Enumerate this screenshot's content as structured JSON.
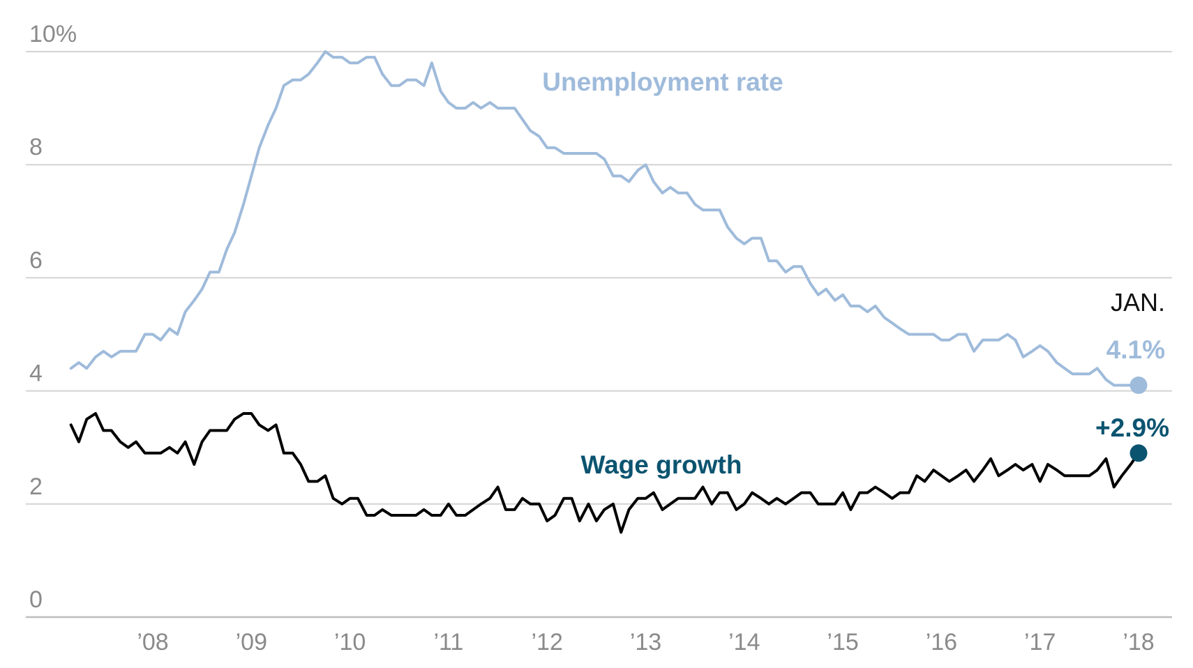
{
  "chart_data": {
    "type": "line",
    "ylim": [
      0,
      10
    ],
    "y_ticks": [
      {
        "value": 10,
        "label": "10%"
      },
      {
        "value": 8,
        "label": "8"
      },
      {
        "value": 6,
        "label": "6"
      },
      {
        "value": 4,
        "label": "4"
      },
      {
        "value": 2,
        "label": "2"
      },
      {
        "value": 0,
        "label": "0"
      }
    ],
    "x_range": [
      2007.17,
      2018.33
    ],
    "x_ticks": [
      {
        "value": 2008,
        "label": "’08"
      },
      {
        "value": 2009,
        "label": "’09"
      },
      {
        "value": 2010,
        "label": "’10"
      },
      {
        "value": 2011,
        "label": "’11"
      },
      {
        "value": 2012,
        "label": "’12"
      },
      {
        "value": 2013,
        "label": "’13"
      },
      {
        "value": 2014,
        "label": "’14"
      },
      {
        "value": 2015,
        "label": "’15"
      },
      {
        "value": 2016,
        "label": "’16"
      },
      {
        "value": 2017,
        "label": "’17"
      },
      {
        "value": 2018,
        "label": "’18"
      }
    ],
    "grid": true,
    "colors": {
      "unemployment": "#9fbbdb",
      "wage": "#000000",
      "wage_end": "#0b5470",
      "grid": "#d4d4d4",
      "tick": "#8a8a8a"
    },
    "endpoint_label": "JAN.",
    "series": [
      {
        "name": "Unemployment rate",
        "key": "unemployment",
        "end_label": "4.1%",
        "x": [
          2007.17,
          2007.25,
          2007.33,
          2007.42,
          2007.5,
          2007.58,
          2007.67,
          2007.75,
          2007.83,
          2007.92,
          2008.0,
          2008.08,
          2008.17,
          2008.25,
          2008.33,
          2008.42,
          2008.5,
          2008.58,
          2008.67,
          2008.75,
          2008.83,
          2008.92,
          2009.0,
          2009.08,
          2009.17,
          2009.25,
          2009.33,
          2009.42,
          2009.5,
          2009.58,
          2009.67,
          2009.75,
          2009.83,
          2009.92,
          2010.0,
          2010.08,
          2010.17,
          2010.25,
          2010.33,
          2010.42,
          2010.5,
          2010.58,
          2010.67,
          2010.75,
          2010.83,
          2010.92,
          2011.0,
          2011.08,
          2011.17,
          2011.25,
          2011.33,
          2011.42,
          2011.5,
          2011.58,
          2011.67,
          2011.75,
          2011.83,
          2011.92,
          2012.0,
          2012.08,
          2012.17,
          2012.25,
          2012.33,
          2012.42,
          2012.5,
          2012.58,
          2012.67,
          2012.75,
          2012.83,
          2012.92,
          2013.0,
          2013.08,
          2013.17,
          2013.25,
          2013.33,
          2013.42,
          2013.5,
          2013.58,
          2013.67,
          2013.75,
          2013.83,
          2013.92,
          2014.0,
          2014.08,
          2014.17,
          2014.25,
          2014.33,
          2014.42,
          2014.5,
          2014.58,
          2014.67,
          2014.75,
          2014.83,
          2014.92,
          2015.0,
          2015.08,
          2015.17,
          2015.25,
          2015.33,
          2015.42,
          2015.5,
          2015.58,
          2015.67,
          2015.75,
          2015.83,
          2015.92,
          2016.0,
          2016.08,
          2016.17,
          2016.25,
          2016.33,
          2016.42,
          2016.5,
          2016.58,
          2016.67,
          2016.75,
          2016.83,
          2016.92,
          2017.0,
          2017.08,
          2017.17,
          2017.25,
          2017.33,
          2017.42,
          2017.5,
          2017.58,
          2017.67,
          2017.75,
          2017.83,
          2017.92,
          2018.0
        ],
        "values": [
          4.4,
          4.5,
          4.4,
          4.6,
          4.7,
          4.6,
          4.7,
          4.7,
          4.7,
          5.0,
          5.0,
          4.9,
          5.1,
          5.0,
          5.4,
          5.6,
          5.8,
          6.1,
          6.1,
          6.5,
          6.8,
          7.3,
          7.8,
          8.3,
          8.7,
          9.0,
          9.4,
          9.5,
          9.5,
          9.6,
          9.8,
          10.0,
          9.9,
          9.9,
          9.8,
          9.8,
          9.9,
          9.9,
          9.6,
          9.4,
          9.4,
          9.5,
          9.5,
          9.4,
          9.8,
          9.3,
          9.1,
          9.0,
          9.0,
          9.1,
          9.0,
          9.1,
          9.0,
          9.0,
          9.0,
          8.8,
          8.6,
          8.5,
          8.3,
          8.3,
          8.2,
          8.2,
          8.2,
          8.2,
          8.2,
          8.1,
          7.8,
          7.8,
          7.7,
          7.9,
          8.0,
          7.7,
          7.5,
          7.6,
          7.5,
          7.5,
          7.3,
          7.2,
          7.2,
          7.2,
          6.9,
          6.7,
          6.6,
          6.7,
          6.7,
          6.3,
          6.3,
          6.1,
          6.2,
          6.2,
          5.9,
          5.7,
          5.8,
          5.6,
          5.7,
          5.5,
          5.5,
          5.4,
          5.5,
          5.3,
          5.2,
          5.1,
          5.0,
          5.0,
          5.0,
          5.0,
          4.9,
          4.9,
          5.0,
          5.0,
          4.7,
          4.9,
          4.9,
          4.9,
          5.0,
          4.9,
          4.6,
          4.7,
          4.8,
          4.7,
          4.5,
          4.4,
          4.3,
          4.3,
          4.3,
          4.4,
          4.2,
          4.1,
          4.1,
          4.1,
          4.1
        ]
      },
      {
        "name": "Wage growth",
        "key": "wage",
        "end_label": "+2.9%",
        "x": [
          2007.17,
          2007.25,
          2007.33,
          2007.42,
          2007.5,
          2007.58,
          2007.67,
          2007.75,
          2007.83,
          2007.92,
          2008.0,
          2008.08,
          2008.17,
          2008.25,
          2008.33,
          2008.42,
          2008.5,
          2008.58,
          2008.67,
          2008.75,
          2008.83,
          2008.92,
          2009.0,
          2009.08,
          2009.17,
          2009.25,
          2009.33,
          2009.42,
          2009.5,
          2009.58,
          2009.67,
          2009.75,
          2009.83,
          2009.92,
          2010.0,
          2010.08,
          2010.17,
          2010.25,
          2010.33,
          2010.42,
          2010.5,
          2010.58,
          2010.67,
          2010.75,
          2010.83,
          2010.92,
          2011.0,
          2011.08,
          2011.17,
          2011.25,
          2011.33,
          2011.42,
          2011.5,
          2011.58,
          2011.67,
          2011.75,
          2011.83,
          2011.92,
          2012.0,
          2012.08,
          2012.17,
          2012.25,
          2012.33,
          2012.42,
          2012.5,
          2012.58,
          2012.67,
          2012.75,
          2012.83,
          2012.92,
          2013.0,
          2013.08,
          2013.17,
          2013.25,
          2013.33,
          2013.42,
          2013.5,
          2013.58,
          2013.67,
          2013.75,
          2013.83,
          2013.92,
          2014.0,
          2014.08,
          2014.17,
          2014.25,
          2014.33,
          2014.42,
          2014.5,
          2014.58,
          2014.67,
          2014.75,
          2014.83,
          2014.92,
          2015.0,
          2015.08,
          2015.17,
          2015.25,
          2015.33,
          2015.42,
          2015.5,
          2015.58,
          2015.67,
          2015.75,
          2015.83,
          2015.92,
          2016.0,
          2016.08,
          2016.17,
          2016.25,
          2016.33,
          2016.42,
          2016.5,
          2016.58,
          2016.67,
          2016.75,
          2016.83,
          2016.92,
          2017.0,
          2017.08,
          2017.17,
          2017.25,
          2017.33,
          2017.42,
          2017.5,
          2017.58,
          2017.67,
          2017.75,
          2017.83,
          2017.92,
          2018.0
        ],
        "values": [
          3.4,
          3.1,
          3.5,
          3.6,
          3.3,
          3.3,
          3.1,
          3.0,
          3.1,
          2.9,
          2.9,
          2.9,
          3.0,
          2.9,
          3.1,
          2.7,
          3.1,
          3.3,
          3.3,
          3.3,
          3.5,
          3.6,
          3.6,
          3.4,
          3.3,
          3.4,
          2.9,
          2.9,
          2.7,
          2.4,
          2.4,
          2.5,
          2.1,
          2.0,
          2.1,
          2.1,
          1.8,
          1.8,
          1.9,
          1.8,
          1.8,
          1.8,
          1.8,
          1.9,
          1.8,
          1.8,
          2.0,
          1.8,
          1.8,
          1.9,
          2.0,
          2.1,
          2.3,
          1.9,
          1.9,
          2.1,
          2.0,
          2.0,
          1.7,
          1.8,
          2.1,
          2.1,
          1.7,
          2.0,
          1.7,
          1.9,
          2.0,
          1.5,
          1.9,
          2.1,
          2.1,
          2.2,
          1.9,
          2.0,
          2.1,
          2.1,
          2.1,
          2.3,
          2.0,
          2.2,
          2.2,
          1.9,
          2.0,
          2.2,
          2.1,
          2.0,
          2.1,
          2.0,
          2.1,
          2.2,
          2.2,
          2.0,
          2.0,
          2.0,
          2.2,
          1.9,
          2.2,
          2.2,
          2.3,
          2.2,
          2.1,
          2.2,
          2.2,
          2.5,
          2.4,
          2.6,
          2.5,
          2.4,
          2.5,
          2.6,
          2.4,
          2.6,
          2.8,
          2.5,
          2.6,
          2.7,
          2.6,
          2.7,
          2.4,
          2.7,
          2.6,
          2.5,
          2.5,
          2.5,
          2.5,
          2.6,
          2.8,
          2.3,
          2.5,
          2.7,
          2.9
        ]
      }
    ]
  }
}
